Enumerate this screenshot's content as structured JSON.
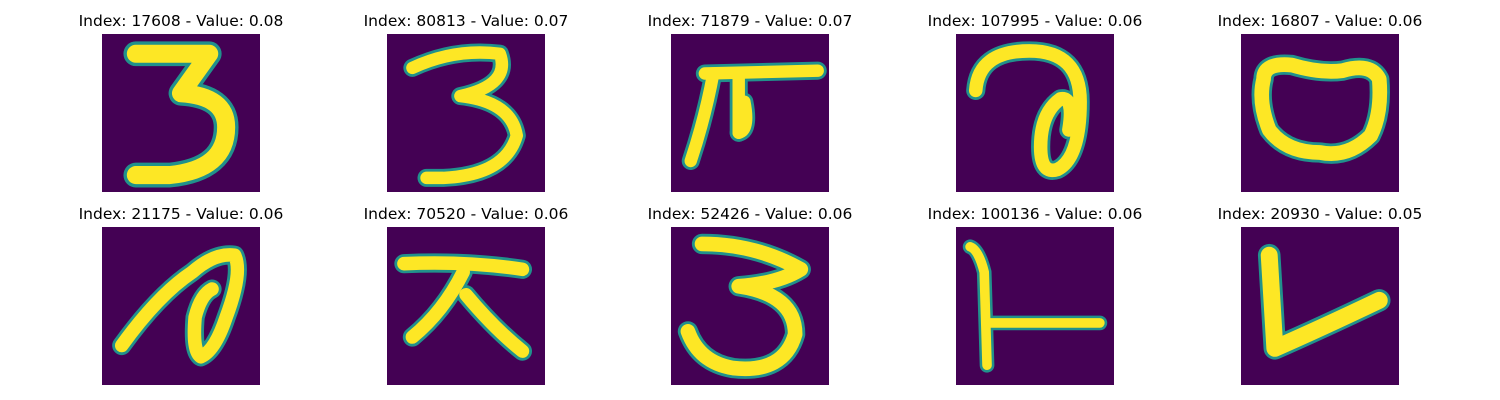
{
  "figure": {
    "background_color": "#440154",
    "stroke_color": "#fde725",
    "edge_color": "#21918c",
    "panels": [
      {
        "title": "Index: 17608 - Value: 0.08",
        "icon": "handwritten-character-3-icon"
      },
      {
        "title": "Index: 80813 - Value: 0.07",
        "icon": "handwritten-character-3-icon"
      },
      {
        "title": "Index: 71879 - Value: 0.07",
        "icon": "handwritten-character-icon"
      },
      {
        "title": "Index: 107995 - Value: 0.06",
        "icon": "handwritten-character-icon"
      },
      {
        "title": "Index: 16807 - Value: 0.06",
        "icon": "handwritten-character-o-icon"
      },
      {
        "title": "Index: 21175 - Value: 0.06",
        "icon": "handwritten-character-icon"
      },
      {
        "title": "Index: 70520 - Value: 0.06",
        "icon": "handwritten-character-icon"
      },
      {
        "title": "Index: 52426 - Value: 0.06",
        "icon": "handwritten-character-3-icon"
      },
      {
        "title": "Index: 100136 - Value: 0.06",
        "icon": "handwritten-character-icon"
      },
      {
        "title": "Index: 20930 - Value: 0.05",
        "icon": "handwritten-character-v-icon"
      }
    ]
  }
}
